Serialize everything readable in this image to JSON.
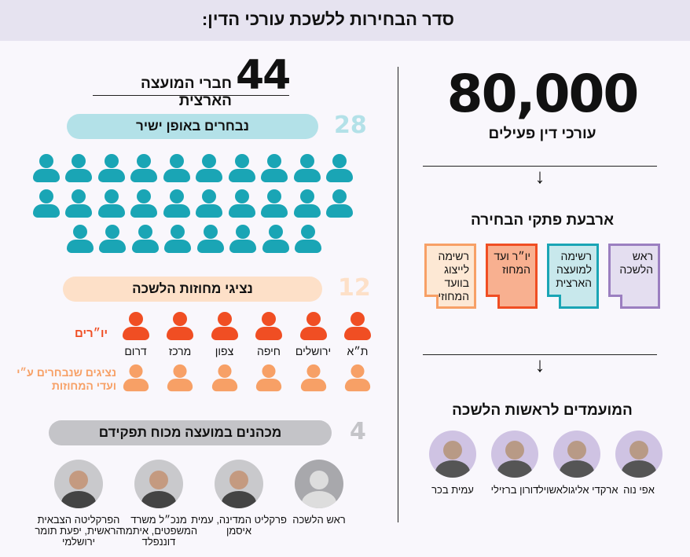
{
  "title": "סדר הבחירות ללשכת עורכי הדין:",
  "colors": {
    "teal": "#1aa5b5",
    "teal_light": "#b3e1e8",
    "red": "#f04e23",
    "orange": "#f7a066",
    "peach": "#fde0c8",
    "gray": "#c4c4c8",
    "purple": "#9b7fc0"
  },
  "right": {
    "lawyers_count": "80,000",
    "lawyers_label": "עורכי דין פעילים",
    "ballots_title": "ארבעת פתקי הבחירה",
    "ballots": [
      {
        "label": "ראש הלשכה",
        "color": "#9b7fc0",
        "bg": "#e4def0"
      },
      {
        "label": "רשימה למועצה הארצית",
        "color": "#1aa5b5",
        "bg": "#c8e8ec"
      },
      {
        "label": "יו״ר ועד המחוז",
        "color": "#f04e23",
        "bg": "#f8b090"
      },
      {
        "label": "רשימה לייצוג בוועד המחוזי",
        "color": "#f7a066",
        "bg": "#fde8d4"
      }
    ],
    "candidates_title": "המועמדים לראשות הלשכה",
    "candidates": [
      "אפי נוה",
      "ארקדי אליגולאשוילי",
      "דורון ברזילי",
      "עמית בכר"
    ]
  },
  "left": {
    "council_count": "44",
    "council_label": "חברי המועצה הארצית",
    "direct": {
      "count": "28",
      "label": "נבחרים באופן ישיר",
      "icons": 28
    },
    "districts": {
      "count": "12",
      "label": "נציגי מחוזות הלשכה",
      "chairs_label": "יו״רים",
      "reps_label": "נציגים שנבחרים ע״י ועדי המחוזות",
      "names": [
        "ת״א",
        "ירושלים",
        "חיפה",
        "צפון",
        "מרכז",
        "דרום"
      ]
    },
    "ex_officio": {
      "count": "4",
      "label": "מכהנים במועצה מכוח תפקידם",
      "members": [
        "ראש הלשכה",
        "פרקליט המדינה, עמית איסמן",
        "מנכ״ל משרד המשפטים, איתמר דוננפלד",
        "הפרקליטה הצבאית הראשית, יפעת תומר ירושלמי"
      ]
    }
  }
}
